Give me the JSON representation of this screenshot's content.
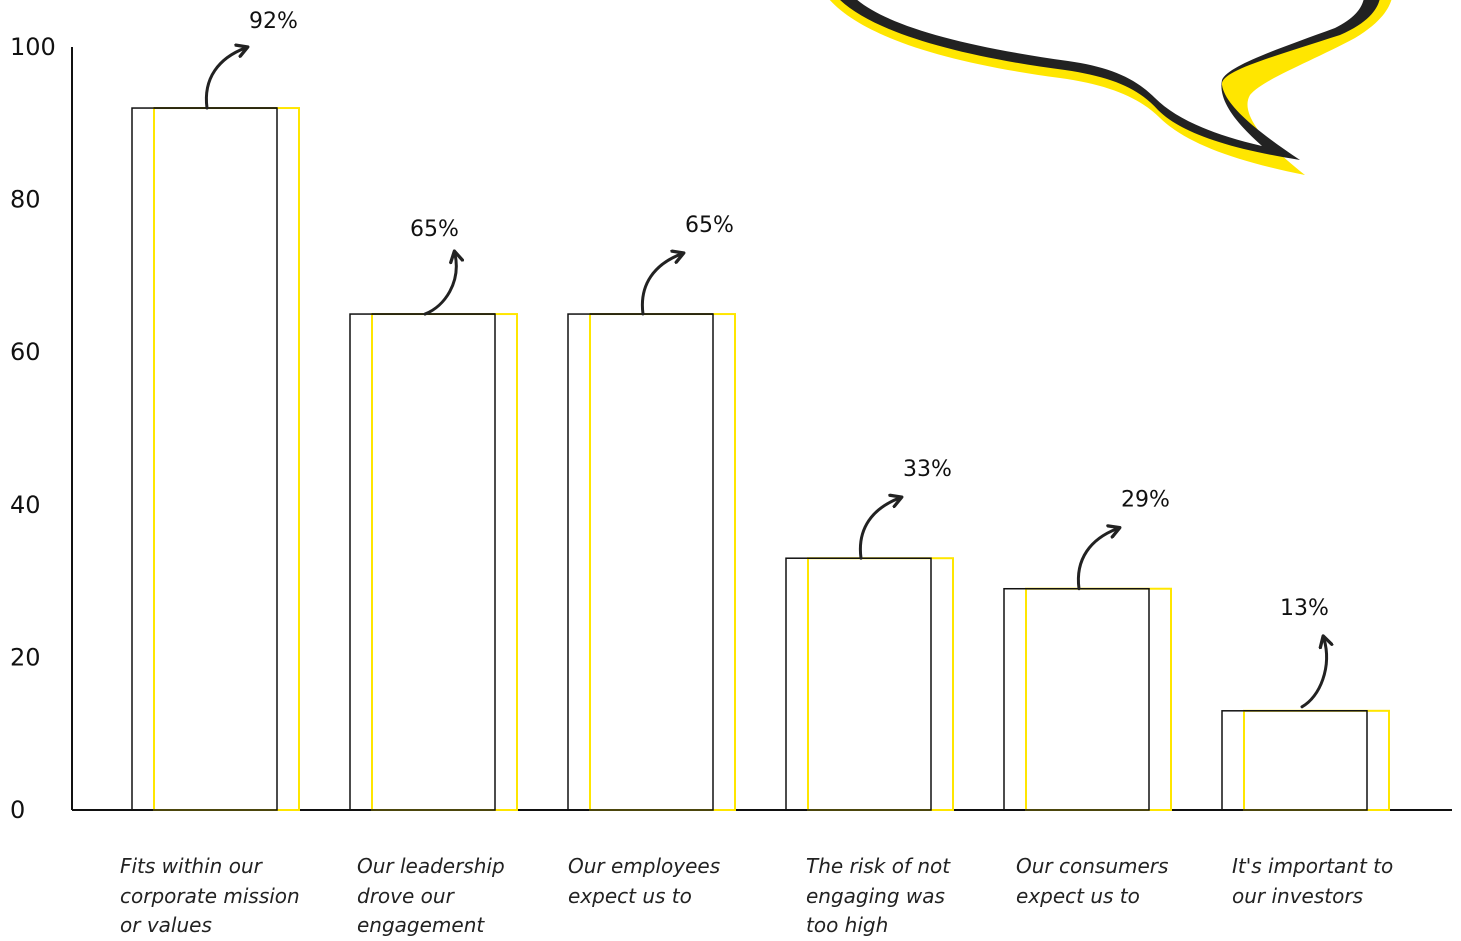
{
  "colors": {
    "background": "#ffffff",
    "outline": "#111111",
    "accent": "#ffe600",
    "bubble_dark": "#222222"
  },
  "decoration": {
    "name": "speech-bubble-icon"
  },
  "chart_data": {
    "type": "bar",
    "categories": [
      "Fits within our corporate mission or values",
      "Our leadership drove our engagement",
      "Our employees expect us to",
      "The risk of not engaging was too high",
      "Our consumers expect us to",
      "It's important to our investors"
    ],
    "values": [
      92,
      65,
      65,
      33,
      29,
      13
    ],
    "value_labels": [
      "92%",
      "65%",
      "65%",
      "33%",
      "29%",
      "13%"
    ],
    "ylim": [
      0,
      100
    ],
    "yticks": [
      0,
      20,
      40,
      60,
      80,
      100
    ],
    "title": "",
    "xlabel": "",
    "ylabel": "",
    "grid": false,
    "legend": "none"
  }
}
